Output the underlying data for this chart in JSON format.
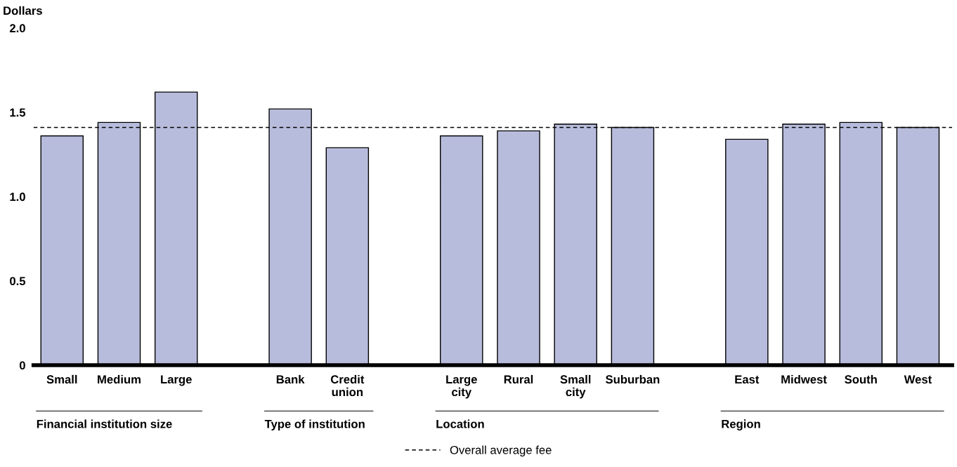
{
  "chart_data": {
    "type": "bar",
    "ylabel": "Dollars",
    "categories": [
      "Small",
      "Medium",
      "Large",
      null,
      "Bank",
      "Credit\nunion",
      null,
      "Large\ncity",
      "Rural",
      "Small\ncity",
      "Suburban",
      null,
      "East",
      "Midwest",
      "South",
      "West"
    ],
    "values": [
      1.36,
      1.44,
      1.62,
      null,
      1.52,
      1.29,
      null,
      1.36,
      1.39,
      1.43,
      1.41,
      null,
      1.34,
      1.43,
      1.44,
      1.41
    ],
    "color": "#b8bcdc",
    "ylim": [
      0,
      2.0
    ],
    "yticks": [
      {
        "value": 0,
        "label": "0"
      },
      {
        "value": 0.5,
        "label": "0.5"
      },
      {
        "value": 1.0,
        "label": "1.0"
      },
      {
        "value": 1.5,
        "label": "1.5"
      },
      {
        "value": 2.0,
        "label": "2.0"
      }
    ],
    "ref_lines": [
      {
        "axis": "y",
        "value": 1.41,
        "label": "Overall average fee",
        "color": "#000000",
        "line_style": "dashed"
      }
    ],
    "annotations": [
      "Financial institution size",
      "Type of institution",
      "Location",
      "Region"
    ],
    "grid": false,
    "legend": "bottom"
  }
}
